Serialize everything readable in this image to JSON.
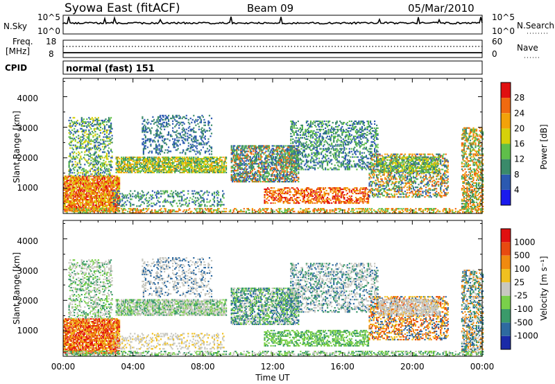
{
  "header": {
    "station": "Syowa East (fitACF)",
    "beam": "Beam 09",
    "date": "05/Mar/2010"
  },
  "panels": {
    "nsky": {
      "label": "N.Sky",
      "right_label": "N.Search",
      "ticks_left": [
        "10^5",
        "10^0"
      ],
      "ticks_right": [
        "10^5",
        "10^0"
      ]
    },
    "freq": {
      "label_line1": "Freq.",
      "label_line2": "[MHz]",
      "right_label": "Nave",
      "ticks_left": [
        "18",
        "8"
      ],
      "ticks_right": [
        "60",
        "0"
      ]
    },
    "cpid": {
      "label": "CPID",
      "value": "normal (fast) 151"
    }
  },
  "chart_data": [
    {
      "type": "heatmap",
      "name": "power",
      "ylabel": "Slant Range [km]",
      "y_ticks": [
        "1000",
        "2000",
        "3000",
        "4000"
      ],
      "ylim": [
        180,
        4600
      ],
      "x_ticks": [
        "00:00",
        "04:00",
        "08:00",
        "12:00",
        "16:00",
        "20:00",
        "00:00"
      ],
      "colorbar": {
        "label": "Power [dB]",
        "ticks": [
          "4",
          "8",
          "12",
          "16",
          "20",
          "24",
          "28"
        ],
        "colors": [
          "#1a1aee",
          "#2b59b0",
          "#3a8a6a",
          "#5fbf4a",
          "#d6d10a",
          "#f2a20a",
          "#f06a10",
          "#e01010"
        ]
      }
    },
    {
      "type": "heatmap",
      "name": "velocity",
      "ylabel": "Slant Range [km]",
      "y_ticks": [
        "1000",
        "2000",
        "3000",
        "4000"
      ],
      "ylim": [
        180,
        4600
      ],
      "x_ticks": [
        "00:00",
        "04:00",
        "08:00",
        "12:00",
        "16:00",
        "20:00",
        "00:00"
      ],
      "xlabel": "Time UT",
      "colorbar": {
        "label": "Velocity [m s⁻¹]",
        "ticks": [
          "1000",
          "500",
          "100",
          "25",
          "-25",
          "-100",
          "-500",
          "-1000"
        ],
        "colors": [
          "#1a2aa8",
          "#2e6aa0",
          "#3a9a6a",
          "#7ad04a",
          "#c8c8c0",
          "#f0c020",
          "#f08a10",
          "#e84a10",
          "#e01010"
        ]
      }
    }
  ]
}
